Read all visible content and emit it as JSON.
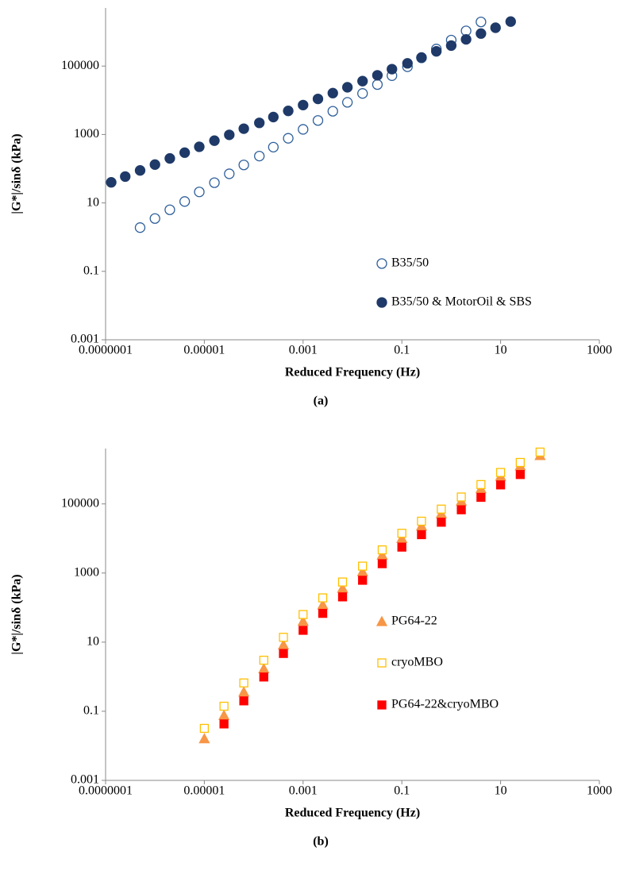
{
  "chart_data": [
    {
      "type": "scatter",
      "caption": "(a)",
      "xlabel": "Reduced Frequency (Hz)",
      "ylabel": "|G*|/sinδ (kPa)",
      "xscale": "log",
      "yscale": "log",
      "xlim": [
        1e-07,
        1000
      ],
      "ylim": [
        0.001,
        5000000
      ],
      "xticks": [
        {
          "value": 1e-07,
          "label": "0.0000001"
        },
        1e-05,
        0.001,
        0.1,
        10,
        1000
      ],
      "yticks": [
        0.001,
        0.1,
        10,
        1000,
        100000
      ],
      "series": [
        {
          "name": "B35/50",
          "color": "#2e5f9a",
          "marker": "circle-open",
          "x": [
            5e-07,
            1e-06,
            2e-06,
            4e-06,
            7.9e-06,
            1.6e-05,
            3.2e-05,
            6.3e-05,
            0.00013,
            0.00025,
            0.0005,
            0.001,
            0.002,
            0.004,
            0.0079,
            0.016,
            0.032,
            0.063,
            0.13,
            0.25,
            0.5,
            1,
            2,
            4
          ],
          "values": [
            1.9,
            3.5,
            6.3,
            11,
            21,
            39,
            71,
            129,
            234,
            427,
            776,
            1413,
            2570,
            4786,
            8710,
            15850,
            28840,
            52480,
            95500,
            173800,
            316000,
            575000,
            1070000,
            1950000
          ]
        },
        {
          "name": "B35/50 & MotorOil & SBS",
          "color": "#1f3a68",
          "marker": "circle",
          "x": [
            1.3e-07,
            2.5e-07,
            5e-07,
            1e-06,
            2e-06,
            4e-06,
            7.9e-06,
            1.6e-05,
            3.2e-05,
            6.3e-05,
            0.00013,
            0.00025,
            0.0005,
            0.001,
            0.002,
            0.004,
            0.0079,
            0.016,
            0.032,
            0.063,
            0.13,
            0.25,
            0.5,
            1,
            2,
            4,
            7.9,
            16
          ],
          "values": [
            40,
            59,
            89,
            132,
            200,
            295,
            437,
            661,
            977,
            1479,
            2188,
            3236,
            4898,
            7244,
            10960,
            16220,
            23990,
            36310,
            53700,
            81280,
            120200,
            177800,
            269200,
            398100,
            602600,
            891300,
            1318000,
            1995000
          ]
        }
      ]
    },
    {
      "type": "scatter",
      "caption": "(b)",
      "xlabel": "Reduced Frequency (Hz)",
      "ylabel": "|G*|/sinδ (kPa)",
      "xscale": "log",
      "yscale": "log",
      "xlim": [
        1e-07,
        1000
      ],
      "ylim": [
        0.001,
        4000000
      ],
      "xticks": [
        {
          "value": 1e-07,
          "label": "0.0000001"
        },
        1e-05,
        0.001,
        0.1,
        10,
        1000
      ],
      "yticks": [
        0.001,
        0.1,
        10,
        1000,
        100000
      ],
      "series": [
        {
          "name": "PG64-22",
          "color": "#f79646",
          "marker": "triangle",
          "x": [
            1e-05,
            2.5e-05,
            6.3e-05,
            0.00016,
            0.0004,
            0.001,
            0.0025,
            0.0063,
            0.016,
            0.04,
            0.1,
            0.25,
            0.63,
            1.6,
            4,
            10,
            25,
            63
          ],
          "values": [
            0.016,
            0.076,
            0.36,
            1.7,
            8.3,
            40,
            120,
            363,
            1096,
            3311,
            10000,
            22910,
            52480,
            120200,
            275400,
            631000,
            1259000,
            2512000
          ]
        },
        {
          "name": "cryoMBO",
          "color": "#ffc000",
          "marker": "square-open",
          "x": [
            1e-05,
            2.5e-05,
            6.3e-05,
            0.00016,
            0.0004,
            0.001,
            0.0025,
            0.0063,
            0.016,
            0.04,
            0.1,
            0.25,
            0.63,
            1.6,
            4,
            10,
            25,
            63
          ],
          "values": [
            0.032,
            0.14,
            0.66,
            3.0,
            13.8,
            63,
            191,
            550,
            1585,
            4677,
            14130,
            31620,
            70790,
            158500,
            363100,
            812800,
            1585000,
            3162000
          ]
        },
        {
          "name": "PG64-22&cryoMBO",
          "color": "#ff0000",
          "marker": "square",
          "x": [
            2.5e-05,
            6.3e-05,
            0.00016,
            0.0004,
            0.001,
            0.0025,
            0.0063,
            0.016,
            0.04,
            0.1,
            0.25,
            0.63,
            1.6,
            4,
            10,
            25
          ],
          "values": [
            0.043,
            0.2,
            0.98,
            4.7,
            22,
            68,
            204,
            617,
            1862,
            5623,
            12880,
            29510,
            67610,
            154900,
            354800,
            707900
          ]
        }
      ]
    }
  ]
}
